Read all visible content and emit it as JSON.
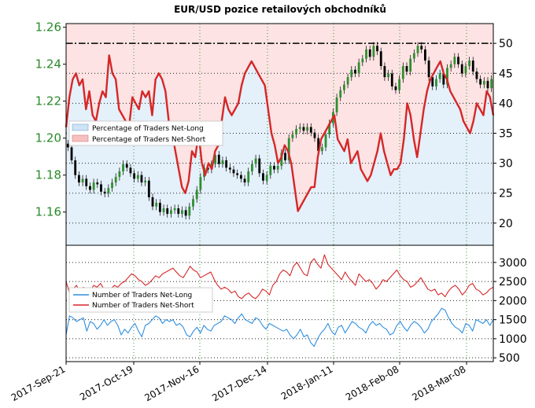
{
  "chart_data": [
    {
      "type": "line",
      "title": "EUR/USD pozice retailových obchodníků",
      "x_tick_labels": [
        "2017-Sep-21",
        "2017-Oct-19",
        "2017-Nov-16",
        "2017-Dec-14",
        "2018-Jan-11",
        "2018-Feb-08",
        "2018-Mar-08"
      ],
      "y_left_ticks": [
        "1.16",
        "1.18",
        "1.20",
        "1.22",
        "1.24",
        "1.26"
      ],
      "y_left_range": [
        1.142,
        1.262
      ],
      "y_right_ticks": [
        "20",
        "25",
        "30",
        "35",
        "40",
        "45",
        "50"
      ],
      "y_right_range": [
        16.3,
        53.3
      ],
      "grid": true,
      "legend_placement": "upper-left",
      "reference_line": 50,
      "series": [
        {
          "name": "Percentage of Traders Net-Long",
          "role": "area-right",
          "color": "#cfe3f5"
        },
        {
          "name": "Percentage of Traders Net-Short",
          "role": "line-right",
          "color": "#d62728",
          "values": [
            36,
            41,
            44,
            45,
            43,
            44,
            39,
            42,
            38,
            37,
            40,
            42,
            41,
            48,
            45,
            44,
            39,
            38,
            37,
            36,
            41,
            40,
            39,
            42,
            41,
            42,
            38,
            44,
            45,
            44,
            42,
            37,
            35,
            32,
            29,
            26,
            25,
            27,
            32,
            31,
            35,
            30,
            28,
            30,
            29,
            32,
            33,
            37,
            41,
            39,
            38,
            39,
            40,
            43,
            45,
            46,
            47,
            46,
            45,
            44,
            43,
            39,
            35,
            33,
            30,
            31,
            33,
            32,
            30,
            26,
            22,
            23,
            24,
            25,
            26,
            26,
            31,
            34,
            35,
            36,
            37,
            38,
            34,
            33,
            32,
            34,
            30,
            31,
            32,
            29,
            28,
            27,
            28,
            30,
            32,
            35,
            32,
            30,
            28,
            29,
            29,
            30,
            34,
            40,
            38,
            34,
            31,
            35,
            39,
            42,
            44,
            45,
            46,
            47,
            45,
            44,
            42,
            41,
            40,
            39,
            37,
            36,
            35,
            37,
            40,
            39,
            38,
            42,
            41,
            38
          ]
        },
        {
          "name": "EUR/USD",
          "role": "candles-left",
          "color": "#000000",
          "values": [
            1.195,
            1.188,
            1.18,
            1.176,
            1.178,
            1.174,
            1.172,
            1.176,
            1.175,
            1.171,
            1.17,
            1.173,
            1.176,
            1.179,
            1.182,
            1.186,
            1.184,
            1.181,
            1.178,
            1.18,
            1.176,
            1.177,
            1.168,
            1.163,
            1.165,
            1.16,
            1.162,
            1.159,
            1.161,
            1.162,
            1.159,
            1.161,
            1.158,
            1.163,
            1.167,
            1.172,
            1.179,
            1.184,
            1.183,
            1.186,
            1.191,
            1.186,
            1.188,
            1.184,
            1.183,
            1.181,
            1.18,
            1.178,
            1.176,
            1.182,
            1.186,
            1.189,
            1.181,
            1.177,
            1.18,
            1.185,
            1.183,
            1.185,
            1.192,
            1.188,
            1.2,
            1.202,
            1.205,
            1.206,
            1.204,
            1.206,
            1.203,
            1.2,
            1.193,
            1.195,
            1.202,
            1.208,
            1.214,
            1.222,
            1.226,
            1.229,
            1.233,
            1.237,
            1.235,
            1.241,
            1.243,
            1.248,
            1.244,
            1.25,
            1.247,
            1.239,
            1.233,
            1.235,
            1.228,
            1.226,
            1.232,
            1.239,
            1.236,
            1.243,
            1.246,
            1.25,
            1.248,
            1.242,
            1.233,
            1.228,
            1.232,
            1.235,
            1.229,
            1.238,
            1.24,
            1.244,
            1.24,
            1.235,
            1.239,
            1.242,
            1.236,
            1.232,
            1.229,
            1.231,
            1.227,
            1.232
          ]
        }
      ]
    },
    {
      "type": "line",
      "y_right_ticks": [
        "500",
        "1000",
        "1500",
        "2000",
        "2500",
        "3000"
      ],
      "y_right_range": [
        400,
        3450
      ],
      "grid": true,
      "legend_placement": "upper-left",
      "series": [
        {
          "name": "Number of Traders Net-Long",
          "color": "#2f8fe0",
          "values": [
            1100,
            1600,
            1550,
            1450,
            1500,
            1550,
            1200,
            1450,
            1400,
            1250,
            1350,
            1500,
            1350,
            1450,
            1500,
            1350,
            1100,
            1250,
            1150,
            1300,
            1400,
            1200,
            1050,
            1350,
            1400,
            1500,
            1600,
            1550,
            1400,
            1500,
            1450,
            1500,
            1350,
            1400,
            1300,
            1100,
            1050,
            1200,
            1300,
            1150,
            1350,
            1250,
            1200,
            1350,
            1400,
            1450,
            1600,
            1550,
            1500,
            1400,
            1550,
            1650,
            1500,
            1450,
            1400,
            1550,
            1500,
            1350,
            1250,
            1400,
            1350,
            1300,
            1250,
            1200,
            1250,
            1100,
            1000,
            1100,
            1250,
            1050,
            1100,
            900,
            800,
            1000,
            1150,
            1250,
            1400,
            1200,
            1100,
            1300,
            1350,
            1150,
            1300,
            1450,
            1400,
            1300,
            1250,
            1150,
            1350,
            1450,
            1350,
            1400,
            1300,
            1250,
            1100,
            1150,
            1350,
            1450,
            1300,
            1200,
            1350,
            1450,
            1400,
            1300,
            1150,
            1250,
            1450,
            1550,
            1650,
            1800,
            1750,
            1550,
            1400,
            1300,
            1250,
            1150,
            1400,
            1350,
            1200,
            1500,
            1450,
            1400,
            1500,
            1350,
            1500
          ]
        },
        {
          "name": "Number of Traders Net-Short",
          "color": "#d62728",
          "values": [
            2500,
            2200,
            2300,
            2400,
            2250,
            2350,
            2300,
            2250,
            2400,
            2350,
            2450,
            2300,
            2250,
            2300,
            2400,
            2350,
            2450,
            2500,
            2600,
            2700,
            2650,
            2550,
            2500,
            2400,
            2450,
            2550,
            2650,
            2600,
            2700,
            2750,
            2800,
            2850,
            2750,
            2650,
            2600,
            2750,
            2900,
            2800,
            2750,
            2600,
            2650,
            2700,
            2750,
            2550,
            2400,
            2300,
            2350,
            2300,
            2200,
            2250,
            2100,
            2050,
            2150,
            2200,
            2100,
            2050,
            2150,
            2300,
            2250,
            2150,
            2400,
            2500,
            2700,
            2800,
            2750,
            2650,
            2900,
            3000,
            2850,
            2700,
            2650,
            3000,
            3100,
            2950,
            2850,
            3200,
            2950,
            2850,
            2750,
            2650,
            2550,
            2750,
            2600,
            2500,
            2400,
            2700,
            2600,
            2500,
            2550,
            2450,
            2300,
            2400,
            2550,
            2500,
            2600,
            2700,
            2800,
            2650,
            2550,
            2500,
            2350,
            2400,
            2500,
            2600,
            2450,
            2300,
            2250,
            2300,
            2150,
            2200,
            2100,
            2250,
            2350,
            2400,
            2300,
            2150,
            2250,
            2400,
            2450,
            2300,
            2250,
            2150,
            2200,
            2300,
            2350
          ]
        }
      ]
    }
  ]
}
